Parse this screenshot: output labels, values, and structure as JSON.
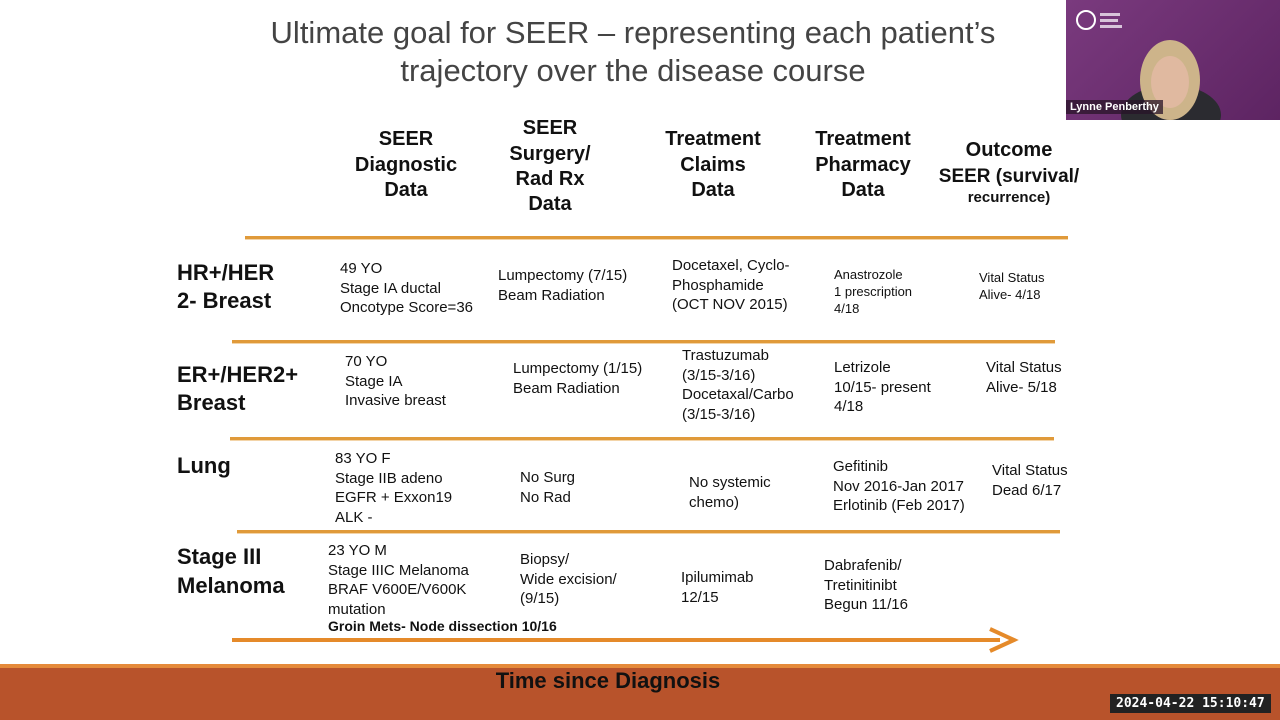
{
  "slide": {
    "title_lines": [
      "Ultimate goal for SEER – representing each patient’s",
      "trajectory over the disease course"
    ],
    "headers": [
      [
        "SEER",
        "Diagnostic",
        "Data"
      ],
      [
        "SEER",
        "Surgery/",
        "Rad Rx",
        "Data"
      ],
      [
        "Treatment",
        "Claims",
        "Data"
      ],
      [
        "Treatment",
        "Pharmacy",
        "Data"
      ],
      [
        "Outcome",
        "SEER (survival/",
        "recurrence)"
      ]
    ],
    "rows": [
      {
        "label": [
          "HR+/HER",
          "2- Breast"
        ],
        "cells": [
          [
            "49 YO",
            "Stage IA ductal",
            "Oncotype Score=36"
          ],
          [
            "Lumpectomy (7/15)",
            "Beam Radiation"
          ],
          [
            "Docetaxel, Cyclo-",
            "Phosphamide",
            "(OCT NOV 2015)"
          ],
          [
            "Anastrozole",
            "1 prescription",
            "4/18"
          ],
          [
            "Vital Status",
            "Alive- 4/18"
          ]
        ]
      },
      {
        "label": [
          "ER+/HER2+",
          "Breast"
        ],
        "cells": [
          [
            "70 YO",
            "Stage IA",
            "Invasive breast"
          ],
          [
            "Lumpectomy (1/15)",
            "Beam Radiation"
          ],
          [
            "Trastuzumab",
            "(3/15-3/16)",
            "Docetaxal/Carbo",
            "(3/15-3/16)"
          ],
          [
            "Letrizole",
            "10/15- present",
            "4/18"
          ],
          [
            "Vital Status",
            "Alive- 5/18"
          ]
        ]
      },
      {
        "label": [
          "Lung"
        ],
        "cells": [
          [
            "83 YO F",
            "Stage IIB adeno",
            "EGFR + Exxon19",
            "ALK -"
          ],
          [
            "No Surg",
            "No Rad"
          ],
          [
            "No systemic",
            "chemo)"
          ],
          [
            "Gefitinib",
            "Nov 2016-Jan 2017",
            "Erlotinib (Feb 2017)"
          ],
          [
            "Vital Status",
            "Dead  6/17"
          ]
        ]
      },
      {
        "label": [
          "Stage III",
          "Melanoma"
        ],
        "cells": [
          [
            "23 YO M",
            "Stage IIIC Melanoma",
            "BRAF V600E/V600K",
            "mutation"
          ],
          [
            "Biopsy/",
            "Wide excision/",
            "(9/15)"
          ],
          [
            "Ipilumimab",
            " 12/15"
          ],
          [
            "Dabrafenib/",
            "Tretinitinibt",
            "Begun 11/16"
          ]
        ],
        "note": "Groin Mets- Node dissection 10/16"
      }
    ],
    "axis_label": "Time since Diagnosis"
  },
  "video": {
    "participant_name": "Lynne Penberthy"
  },
  "timestamp": "2024-04-22 15:10:47"
}
